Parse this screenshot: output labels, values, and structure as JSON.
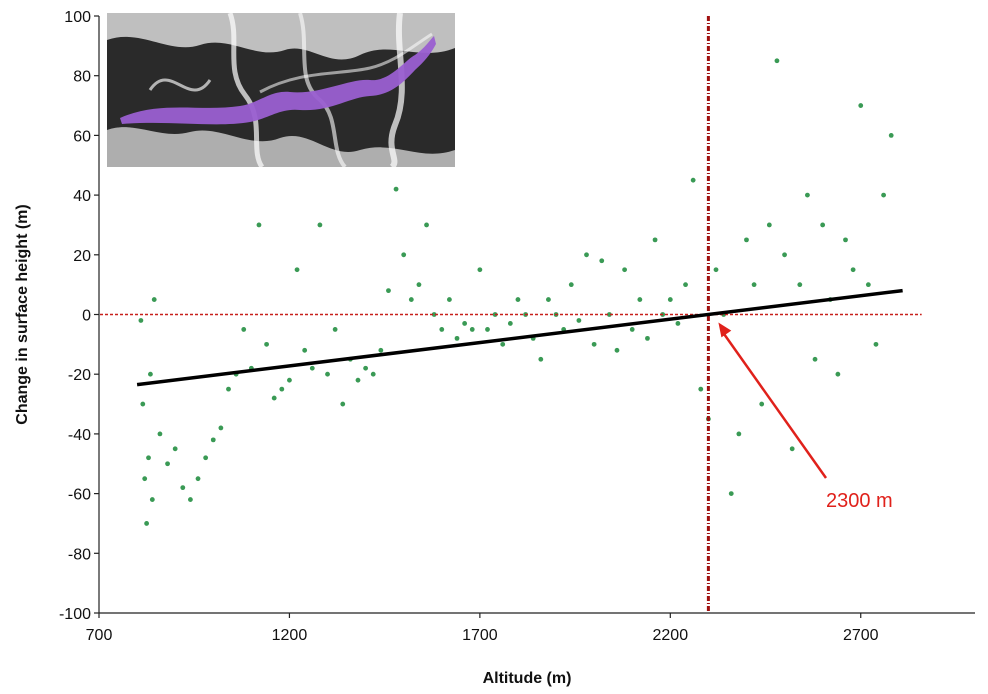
{
  "chart_data": {
    "type": "scatter",
    "xlabel": "Altitude (m)",
    "ylabel": "Change in surface height (m)",
    "xlim": [
      700,
      3000
    ],
    "ylim": [
      -100,
      100
    ],
    "xticks": [
      700,
      1200,
      1700,
      2200,
      2700
    ],
    "yticks": [
      -100,
      -80,
      -60,
      -40,
      -20,
      0,
      20,
      40,
      60,
      80,
      100
    ],
    "grid": false,
    "legend": "none",
    "point_color": "#3a9a55",
    "trend_color": "#000000",
    "reference_color": "#c8201c",
    "series": [
      {
        "values": [
          [
            810,
            -2
          ],
          [
            815,
            -30
          ],
          [
            820,
            -55
          ],
          [
            825,
            -70
          ],
          [
            830,
            -48
          ],
          [
            835,
            -20
          ],
          [
            840,
            -62
          ],
          [
            845,
            5
          ],
          [
            860,
            -40
          ],
          [
            880,
            -50
          ],
          [
            900,
            -45
          ],
          [
            920,
            -58
          ],
          [
            940,
            -62
          ],
          [
            960,
            -55
          ],
          [
            980,
            -48
          ],
          [
            1000,
            -42
          ],
          [
            1020,
            -38
          ],
          [
            1040,
            -25
          ],
          [
            1060,
            -20
          ],
          [
            1080,
            -5
          ],
          [
            1100,
            -18
          ],
          [
            1120,
            30
          ],
          [
            1140,
            -10
          ],
          [
            1160,
            -28
          ],
          [
            1180,
            -25
          ],
          [
            1200,
            -22
          ],
          [
            1220,
            15
          ],
          [
            1240,
            -12
          ],
          [
            1260,
            -18
          ],
          [
            1280,
            30
          ],
          [
            1300,
            -20
          ],
          [
            1320,
            -5
          ],
          [
            1340,
            -30
          ],
          [
            1360,
            -15
          ],
          [
            1380,
            -22
          ],
          [
            1400,
            -18
          ],
          [
            1420,
            -20
          ],
          [
            1440,
            -12
          ],
          [
            1460,
            8
          ],
          [
            1480,
            42
          ],
          [
            1500,
            20
          ],
          [
            1520,
            5
          ],
          [
            1540,
            10
          ],
          [
            1560,
            30
          ],
          [
            1580,
            0
          ],
          [
            1600,
            -5
          ],
          [
            1620,
            5
          ],
          [
            1640,
            -8
          ],
          [
            1660,
            -3
          ],
          [
            1680,
            -5
          ],
          [
            1700,
            15
          ],
          [
            1720,
            -5
          ],
          [
            1740,
            0
          ],
          [
            1760,
            -10
          ],
          [
            1780,
            -3
          ],
          [
            1800,
            5
          ],
          [
            1820,
            0
          ],
          [
            1840,
            -8
          ],
          [
            1860,
            -15
          ],
          [
            1880,
            5
          ],
          [
            1900,
            0
          ],
          [
            1920,
            -5
          ],
          [
            1940,
            10
          ],
          [
            1960,
            -2
          ],
          [
            1980,
            20
          ],
          [
            2000,
            -10
          ],
          [
            2020,
            18
          ],
          [
            2040,
            0
          ],
          [
            2060,
            -12
          ],
          [
            2080,
            15
          ],
          [
            2100,
            -5
          ],
          [
            2120,
            5
          ],
          [
            2140,
            -8
          ],
          [
            2160,
            25
          ],
          [
            2180,
            0
          ],
          [
            2200,
            5
          ],
          [
            2220,
            -3
          ],
          [
            2240,
            10
          ],
          [
            2260,
            45
          ],
          [
            2280,
            -25
          ],
          [
            2300,
            -35
          ],
          [
            2320,
            15
          ],
          [
            2340,
            0
          ],
          [
            2360,
            -60
          ],
          [
            2380,
            -40
          ],
          [
            2400,
            25
          ],
          [
            2420,
            10
          ],
          [
            2440,
            -30
          ],
          [
            2460,
            30
          ],
          [
            2480,
            85
          ],
          [
            2500,
            20
          ],
          [
            2520,
            -45
          ],
          [
            2540,
            10
          ],
          [
            2560,
            40
          ],
          [
            2580,
            -15
          ],
          [
            2600,
            30
          ],
          [
            2620,
            5
          ],
          [
            2640,
            -20
          ],
          [
            2660,
            25
          ],
          [
            2680,
            15
          ],
          [
            2700,
            70
          ],
          [
            2720,
            10
          ],
          [
            2740,
            -10
          ],
          [
            2760,
            40
          ],
          [
            2780,
            60
          ]
        ]
      }
    ],
    "trend_line": [
      [
        800,
        -23.5
      ],
      [
        2810,
        8
      ]
    ],
    "vline_x": 2300,
    "hline_y": 0,
    "annotation": {
      "text": "2300 m",
      "arrow_to": [
        2300,
        0
      ]
    }
  }
}
